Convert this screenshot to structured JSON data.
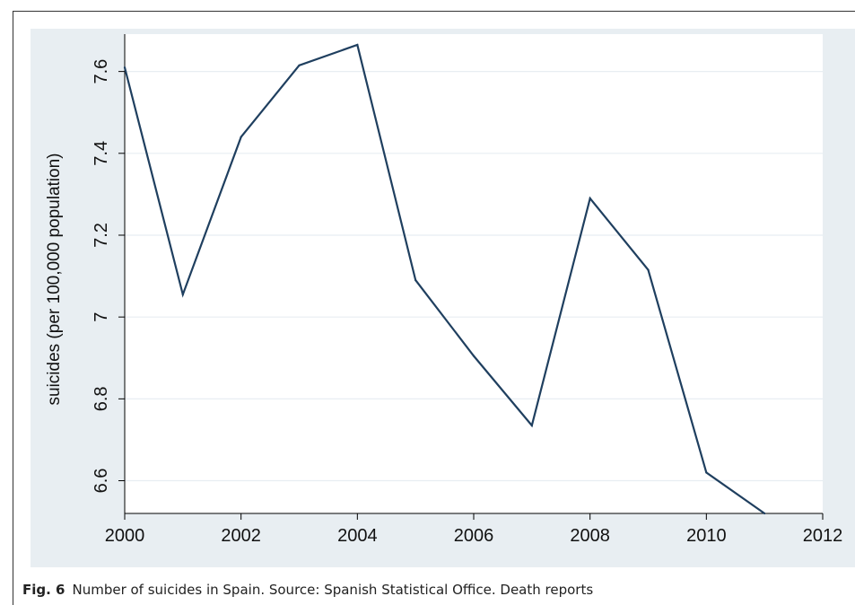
{
  "chart_data": {
    "type": "line",
    "title": "",
    "xlabel": "",
    "ylabel": "suicides (per 100,000 population)",
    "x": [
      2000,
      2001,
      2002,
      2003,
      2004,
      2005,
      2006,
      2007,
      2008,
      2009,
      2010,
      2011
    ],
    "series": [
      {
        "values": [
          7.61,
          7.055,
          7.44,
          7.615,
          7.665,
          7.09,
          6.905,
          6.735,
          7.29,
          7.115,
          6.62,
          6.52
        ]
      }
    ],
    "xticks": [
      2000,
      2002,
      2004,
      2006,
      2008,
      2010,
      2012
    ],
    "xtick_labels": [
      "2000",
      "2002",
      "2004",
      "2006",
      "2008",
      "2010",
      "2012"
    ],
    "yticks": [
      6.6,
      6.8,
      7,
      7.2,
      7.4,
      7.6
    ],
    "ytick_labels": [
      "6.6",
      "6.8",
      "7",
      "7.2",
      "7.4",
      "7.6"
    ],
    "xlim": [
      2000,
      2012
    ],
    "ylim": [
      6.52,
      7.665
    ],
    "grid": "horizontal",
    "legend": "none",
    "colors": {
      "line": "#1f3f5f",
      "panel_background": "#e8eef2",
      "plot_background": "#ffffff",
      "gridline": "#e8eef2",
      "axis": "#000000"
    }
  },
  "caption": {
    "label": "Fig. 6",
    "text": "Number of suicides in Spain. Source: Spanish Statistical Office. Death reports"
  }
}
